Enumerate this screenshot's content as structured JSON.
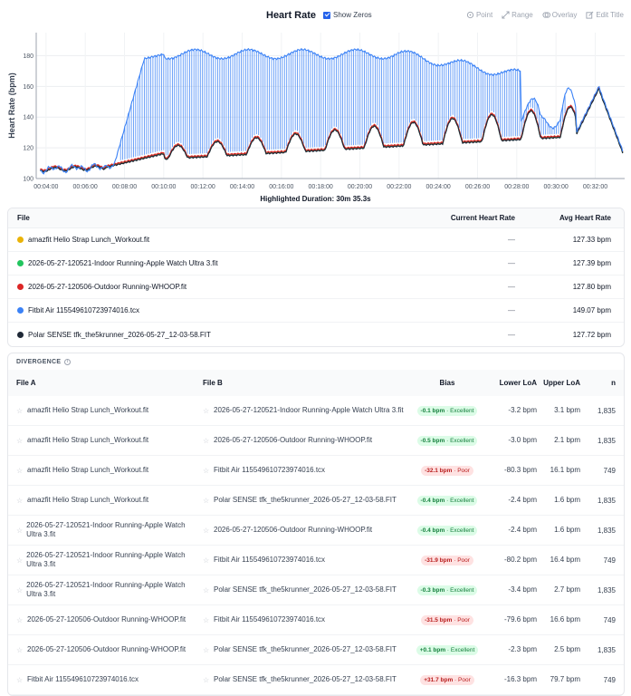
{
  "header": {
    "title": "Heart Rate",
    "show_zeros_label": "Show Zeros",
    "tools": [
      {
        "label": "Point",
        "icon": "point-icon"
      },
      {
        "label": "Range",
        "icon": "range-icon"
      },
      {
        "label": "Overlay",
        "icon": "overlay-icon"
      },
      {
        "label": "Edit Title",
        "icon": "edit-icon"
      }
    ]
  },
  "chart_data": {
    "type": "line",
    "title": "Heart Rate",
    "ylabel": "Heart Rate (bpm)",
    "xlabel": "",
    "ylim": [
      100,
      195
    ],
    "xlim": [
      3.5,
      33.5
    ],
    "yticks": [
      100,
      120,
      140,
      160,
      180
    ],
    "xticks": [
      "00:04:00",
      "00:06:00",
      "00:08:00",
      "00:10:00",
      "00:12:00",
      "00:14:00",
      "00:16:00",
      "00:18:00",
      "00:20:00",
      "00:22:00",
      "00:24:00",
      "00:26:00",
      "00:28:00",
      "00:30:00",
      "00:32:00"
    ],
    "grid": true,
    "series": [
      {
        "name": "amazfit Helio Strap Lunch_Workout.fit",
        "color": "#eab308"
      },
      {
        "name": "2026-05-27-120521-Indoor Running-Apple Watch Ultra 3.fit",
        "color": "#22c55e"
      },
      {
        "name": "2026-05-27-120506-Outdoor Running-WHOOP.fit",
        "color": "#dc2626"
      },
      {
        "name": "Fitbit Air 115549610723974016.tcx",
        "color": "#3b82f6"
      },
      {
        "name": "Polar SENSE tfk_the5krunner_2026-05-27_12-03-58.FIT",
        "color": "#1f2937"
      }
    ],
    "highlighted_duration": "Highlighted Duration: 30m 35.3s"
  },
  "files": {
    "headers": {
      "file": "File",
      "current": "Current Heart Rate",
      "avg": "Avg Heart Rate"
    },
    "rows": [
      {
        "name": "amazfit Helio Strap Lunch_Workout.fit",
        "color": "#eab308",
        "current": "—",
        "avg": "127.33 bpm"
      },
      {
        "name": "2026-05-27-120521-Indoor Running-Apple Watch Ultra 3.fit",
        "color": "#22c55e",
        "current": "—",
        "avg": "127.39 bpm"
      },
      {
        "name": "2026-05-27-120506-Outdoor Running-WHOOP.fit",
        "color": "#dc2626",
        "current": "—",
        "avg": "127.80 bpm"
      },
      {
        "name": "Fitbit Air 115549610723974016.tcx",
        "color": "#3b82f6",
        "current": "—",
        "avg": "149.07 bpm"
      },
      {
        "name": "Polar SENSE tfk_the5krunner_2026-05-27_12-03-58.FIT",
        "color": "#1f2937",
        "current": "—",
        "avg": "127.72 bpm"
      }
    ]
  },
  "divergence": {
    "title": "DIVERGENCE",
    "headers": {
      "a": "File A",
      "b": "File B",
      "bias": "Bias",
      "lower": "Lower LoA",
      "upper": "Upper LoA",
      "n": "n"
    },
    "rows": [
      {
        "a": "amazfit Helio Strap Lunch_Workout.fit",
        "b": "2026-05-27-120521-Indoor Running-Apple Watch Ultra 3.fit",
        "bias": "-0.1 bpm",
        "grade": "Excellent",
        "lower": "-3.2 bpm",
        "upper": "3.1 bpm",
        "n": "1,835"
      },
      {
        "a": "amazfit Helio Strap Lunch_Workout.fit",
        "b": "2026-05-27-120506-Outdoor Running-WHOOP.fit",
        "bias": "-0.5 bpm",
        "grade": "Excellent",
        "lower": "-3.0 bpm",
        "upper": "2.1 bpm",
        "n": "1,835"
      },
      {
        "a": "amazfit Helio Strap Lunch_Workout.fit",
        "b": "Fitbit Air 115549610723974016.tcx",
        "bias": "-32.1 bpm",
        "grade": "Poor",
        "lower": "-80.3 bpm",
        "upper": "16.1 bpm",
        "n": "749"
      },
      {
        "a": "amazfit Helio Strap Lunch_Workout.fit",
        "b": "Polar SENSE tfk_the5krunner_2026-05-27_12-03-58.FIT",
        "bias": "-0.4 bpm",
        "grade": "Excellent",
        "lower": "-2.4 bpm",
        "upper": "1.6 bpm",
        "n": "1,835"
      },
      {
        "a": "2026-05-27-120521-Indoor Running-Apple Watch Ultra 3.fit",
        "b": "2026-05-27-120506-Outdoor Running-WHOOP.fit",
        "bias": "-0.4 bpm",
        "grade": "Excellent",
        "lower": "-2.4 bpm",
        "upper": "1.6 bpm",
        "n": "1,835"
      },
      {
        "a": "2026-05-27-120521-Indoor Running-Apple Watch Ultra 3.fit",
        "b": "Fitbit Air 115549610723974016.tcx",
        "bias": "-31.9 bpm",
        "grade": "Poor",
        "lower": "-80.2 bpm",
        "upper": "16.4 bpm",
        "n": "749"
      },
      {
        "a": "2026-05-27-120521-Indoor Running-Apple Watch Ultra 3.fit",
        "b": "Polar SENSE tfk_the5krunner_2026-05-27_12-03-58.FIT",
        "bias": "-0.3 bpm",
        "grade": "Excellent",
        "lower": "-3.4 bpm",
        "upper": "2.7 bpm",
        "n": "1,835"
      },
      {
        "a": "2026-05-27-120506-Outdoor Running-WHOOP.fit",
        "b": "Fitbit Air 115549610723974016.tcx",
        "bias": "-31.5 bpm",
        "grade": "Poor",
        "lower": "-79.6 bpm",
        "upper": "16.6 bpm",
        "n": "749"
      },
      {
        "a": "2026-05-27-120506-Outdoor Running-WHOOP.fit",
        "b": "Polar SENSE tfk_the5krunner_2026-05-27_12-03-58.FIT",
        "bias": "+0.1 bpm",
        "grade": "Excellent",
        "lower": "-2.3 bpm",
        "upper": "2.5 bpm",
        "n": "1,835"
      },
      {
        "a": "Fitbit Air 115549610723974016.tcx",
        "b": "Polar SENSE tfk_the5krunner_2026-05-27_12-03-58.FIT",
        "bias": "+31.7 bpm",
        "grade": "Poor",
        "lower": "-16.3 bpm",
        "upper": "79.7 bpm",
        "n": "749"
      }
    ]
  }
}
